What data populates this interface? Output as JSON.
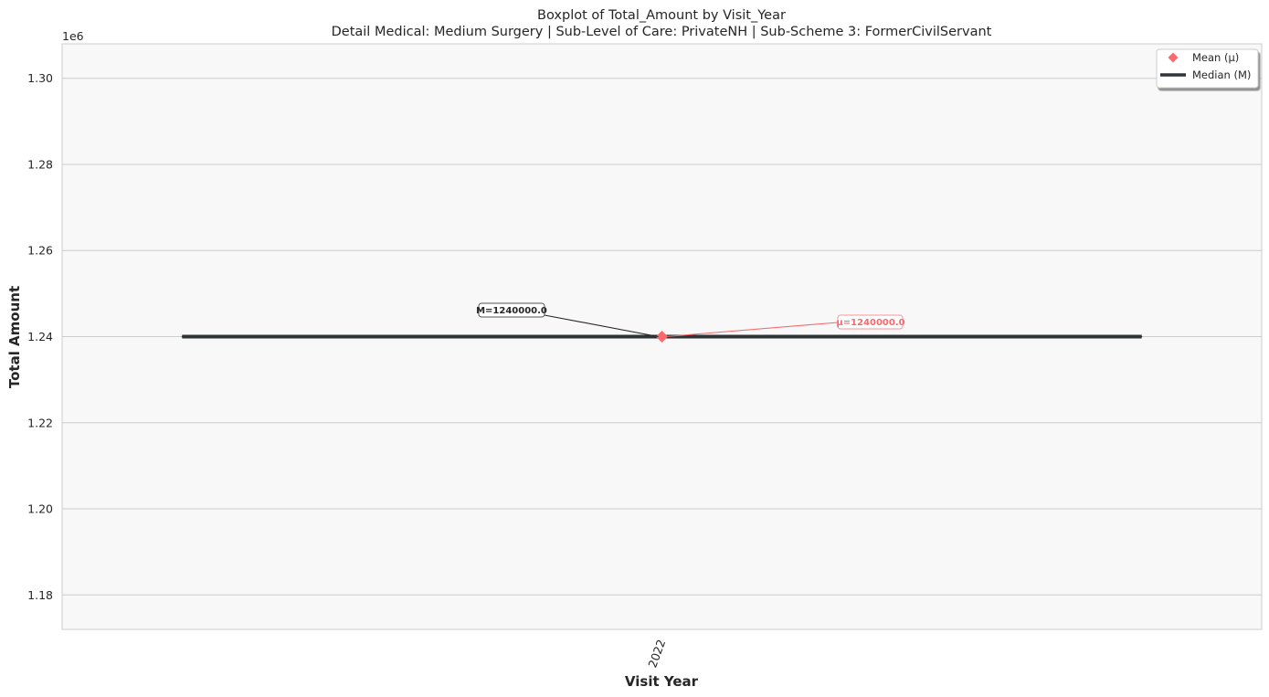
{
  "chart_data": {
    "type": "box",
    "title": "Boxplot of Total_Amount by Visit_Year",
    "subtitle": "Detail Medical: Medium Surgery | Sub-Level of Care: PrivateNH | Sub-Scheme 3: FormerCivilServant",
    "xlabel": "Visit Year",
    "ylabel": "Total Amount",
    "y_offset_label": "1e6",
    "ylim": [
      1172000,
      1308000
    ],
    "yticks": [
      1180000,
      1200000,
      1220000,
      1240000,
      1260000,
      1280000,
      1300000
    ],
    "ytick_labels": [
      "1.18",
      "1.20",
      "1.22",
      "1.24",
      "1.26",
      "1.28",
      "1.30"
    ],
    "categories": [
      "2022"
    ],
    "series": [
      {
        "category": "2022",
        "min": 1240000,
        "q1": 1240000,
        "median": 1240000,
        "q3": 1240000,
        "max": 1240000,
        "mean": 1240000
      }
    ],
    "annotations": {
      "median_label": "M=1240000.0",
      "mean_label": "μ=1240000.0"
    },
    "legend": {
      "position": "top-right",
      "entries": [
        {
          "label": "Mean (μ)",
          "marker": "diamond",
          "color": "#f76a6e"
        },
        {
          "label": "Median (M)",
          "marker": "line",
          "color": "#2e3436"
        }
      ]
    },
    "grid": true,
    "colors": {
      "mean": "#f76a6e",
      "median": "#2e3436",
      "plot_bg": "#f8f8f8",
      "grid": "#cccccc"
    }
  }
}
